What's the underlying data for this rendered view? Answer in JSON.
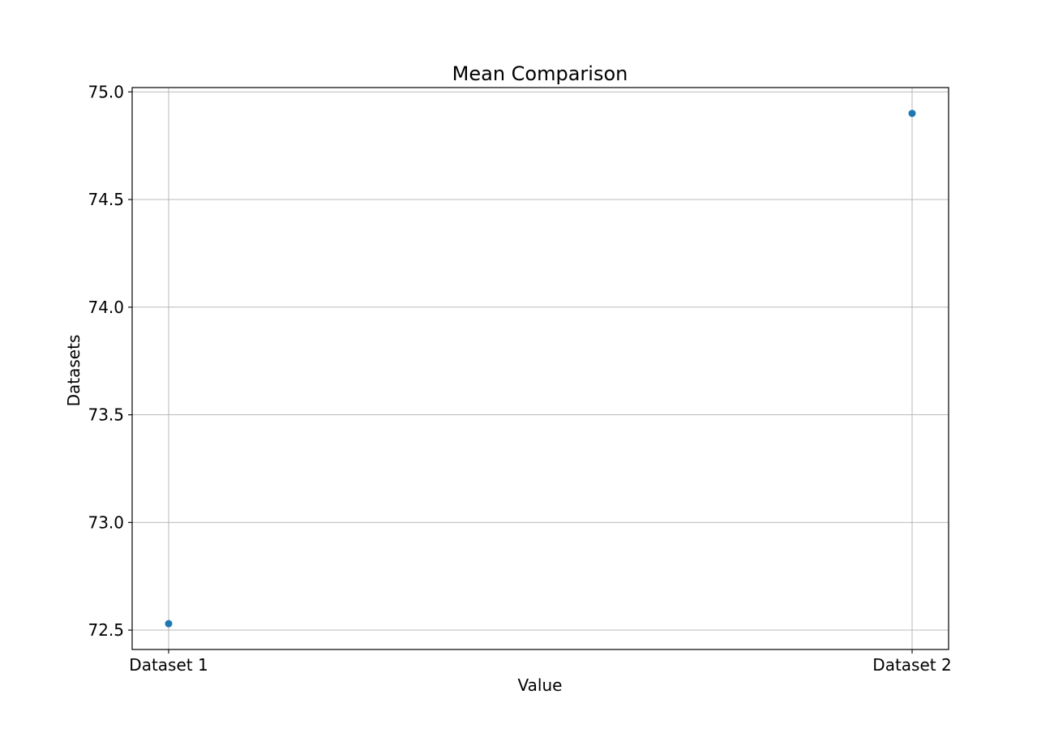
{
  "chart_data": {
    "type": "scatter",
    "title": "Mean Comparison",
    "xlabel": "Value",
    "ylabel": "Datasets",
    "categories": [
      "Dataset 1",
      "Dataset 2"
    ],
    "series": [
      {
        "values": [
          72.53,
          74.9
        ],
        "color": "#1f77b4",
        "marker": "circle"
      }
    ],
    "ylim": [
      72.41,
      75.02
    ],
    "yticks": [
      "72.5",
      "73.0",
      "73.5",
      "74.0",
      "74.5",
      "75.0"
    ],
    "grid": true,
    "legend": "none"
  }
}
